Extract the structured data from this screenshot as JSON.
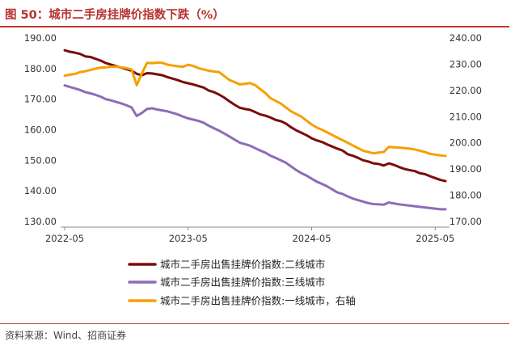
{
  "header": {
    "title": "图 50：城市二手房挂牌价指数下跌（%）"
  },
  "footer": {
    "source": "资料来源：Wind、招商证券"
  },
  "colors": {
    "series_2nd_tier": "#7B0C0C",
    "series_3rd_tier": "#8E6BB8",
    "series_1st_tier": "#F5A000",
    "axis": "#888888",
    "rule": "#C0392B"
  },
  "chart_data": {
    "type": "line",
    "title": "城市二手房挂牌价指数下跌（%）",
    "x_tick_labels": [
      "2022-05",
      "2023-05",
      "2024-05",
      "2025-05"
    ],
    "x_ticks": [
      0,
      12,
      24,
      36
    ],
    "xlim": [
      0,
      37
    ],
    "left_axis": {
      "ylim": [
        130,
        190
      ],
      "ticks": [
        "130.00",
        "140.00",
        "150.00",
        "160.00",
        "170.00",
        "180.00",
        "190.00"
      ]
    },
    "right_axis": {
      "ylim": [
        170,
        240
      ],
      "ticks": [
        "170.00",
        "180.00",
        "190.00",
        "200.00",
        "210.00",
        "220.00",
        "230.00",
        "240.00"
      ]
    },
    "series": [
      {
        "name": "城市二手房出售挂牌价指数:二线城市",
        "axis": "left",
        "x": [
          0,
          0.5,
          1,
          1.5,
          2,
          2.5,
          3,
          3.5,
          4,
          4.5,
          5,
          5.5,
          6,
          6.5,
          7,
          7.5,
          8,
          8.5,
          9,
          9.5,
          10,
          10.5,
          11,
          11.5,
          12,
          12.5,
          13,
          13.5,
          14,
          14.5,
          15,
          15.5,
          16,
          16.5,
          17,
          17.5,
          18,
          18.5,
          19,
          19.5,
          20,
          20.5,
          21,
          21.5,
          22,
          22.5,
          23,
          23.5,
          24,
          24.5,
          25,
          25.5,
          26,
          26.5,
          27,
          27.5,
          28,
          28.5,
          29,
          29.5,
          30,
          30.5,
          31,
          31.5,
          32,
          32.5,
          33,
          33.5,
          34,
          34.5,
          35,
          35.5,
          36,
          36.5,
          37
        ],
        "values": [
          186.0,
          185.5,
          185.2,
          184.8,
          184.0,
          183.8,
          183.2,
          182.6,
          181.8,
          181.3,
          180.8,
          180.3,
          179.8,
          179.3,
          178.3,
          177.8,
          178.5,
          178.4,
          178.1,
          177.8,
          177.2,
          176.7,
          176.2,
          175.6,
          175.2,
          174.8,
          174.3,
          173.8,
          172.8,
          172.3,
          171.5,
          170.5,
          169.3,
          168.2,
          167.2,
          166.8,
          166.5,
          165.8,
          165.0,
          164.6,
          164.0,
          163.2,
          162.8,
          162.0,
          160.8,
          159.8,
          159.0,
          158.2,
          157.2,
          156.5,
          156.0,
          155.2,
          154.5,
          153.8,
          153.2,
          152.0,
          151.5,
          150.8,
          150.0,
          149.6,
          149.0,
          148.8,
          148.3,
          149.0,
          148.5,
          147.8,
          147.2,
          146.8,
          146.5,
          145.8,
          145.5,
          144.8,
          144.2,
          143.6,
          143.2
        ]
      },
      {
        "name": "城市二手房出售挂牌价指数:三线城市",
        "axis": "left",
        "x": [
          0,
          0.5,
          1,
          1.5,
          2,
          2.5,
          3,
          3.5,
          4,
          4.5,
          5,
          5.5,
          6,
          6.5,
          7,
          7.5,
          8,
          8.5,
          9,
          9.5,
          10,
          10.5,
          11,
          11.5,
          12,
          12.5,
          13,
          13.5,
          14,
          14.5,
          15,
          15.5,
          16,
          16.5,
          17,
          17.5,
          18,
          18.5,
          19,
          19.5,
          20,
          20.5,
          21,
          21.5,
          22,
          22.5,
          23,
          23.5,
          24,
          24.5,
          25,
          25.5,
          26,
          26.5,
          27,
          27.5,
          28,
          28.5,
          29,
          29.5,
          30,
          30.5,
          31,
          31.5,
          32,
          32.5,
          33,
          33.5,
          34,
          34.5,
          35,
          35.5,
          36,
          36.5,
          37
        ],
        "values": [
          174.5,
          174.0,
          173.5,
          173.0,
          172.3,
          171.9,
          171.4,
          170.8,
          170.0,
          169.6,
          169.1,
          168.6,
          168.0,
          167.3,
          164.5,
          165.5,
          166.8,
          167.0,
          166.6,
          166.3,
          166.0,
          165.5,
          165.0,
          164.3,
          163.7,
          163.3,
          162.9,
          162.3,
          161.3,
          160.5,
          159.7,
          158.8,
          157.8,
          156.8,
          155.8,
          155.3,
          154.8,
          154.0,
          153.2,
          152.5,
          151.5,
          150.8,
          150.0,
          149.2,
          148.0,
          146.8,
          145.8,
          145.0,
          144.0,
          143.0,
          142.3,
          141.5,
          140.5,
          139.5,
          139.0,
          138.2,
          137.5,
          137.0,
          136.5,
          136.0,
          135.7,
          135.6,
          135.5,
          136.2,
          135.9,
          135.6,
          135.4,
          135.2,
          135.0,
          134.8,
          134.6,
          134.4,
          134.2,
          134.0,
          134.0
        ]
      },
      {
        "name": "城市二手房出售挂牌价指数:一线城市，右轴",
        "axis": "right",
        "x": [
          0,
          0.5,
          1,
          1.5,
          2,
          2.5,
          3,
          3.5,
          4,
          4.5,
          5,
          5.5,
          6,
          6.5,
          7,
          7.5,
          8,
          8.5,
          9,
          9.5,
          10,
          10.5,
          11,
          11.5,
          12,
          12.5,
          13,
          13.5,
          14,
          14.5,
          15,
          15.5,
          16,
          16.5,
          17,
          17.5,
          18,
          18.5,
          19,
          19.5,
          20,
          20.5,
          21,
          21.5,
          22,
          22.5,
          23,
          23.5,
          24,
          24.5,
          25,
          25.5,
          26,
          26.5,
          27,
          27.5,
          28,
          28.5,
          29,
          29.5,
          30,
          30.5,
          31,
          31.5,
          32,
          32.5,
          33,
          33.5,
          34,
          34.5,
          35,
          35.5,
          36,
          36.5,
          37
        ],
        "values": [
          225.6,
          226.0,
          226.3,
          227.0,
          227.3,
          227.8,
          228.3,
          228.7,
          228.8,
          229.0,
          229.1,
          228.8,
          228.5,
          228.0,
          222.0,
          226.5,
          230.5,
          230.4,
          230.6,
          230.5,
          229.8,
          229.5,
          229.2,
          229.0,
          229.8,
          229.3,
          228.5,
          228.0,
          227.5,
          227.2,
          227.0,
          225.5,
          224.0,
          223.2,
          222.3,
          222.5,
          222.8,
          222.0,
          220.5,
          219.0,
          217.0,
          216.0,
          215.0,
          213.5,
          212.0,
          211.0,
          210.0,
          208.5,
          207.0,
          205.8,
          205.0,
          204.0,
          203.0,
          202.0,
          201.0,
          200.0,
          199.0,
          198.0,
          197.0,
          196.5,
          196.0,
          196.3,
          196.5,
          198.5,
          198.3,
          198.2,
          198.0,
          197.8,
          197.5,
          197.0,
          196.5,
          195.8,
          195.5,
          195.2,
          195.0
        ]
      }
    ],
    "legend": [
      "城市二手房出售挂牌价指数:二线城市",
      "城市二手房出售挂牌价指数:三线城市",
      "城市二手房出售挂牌价指数:一线城市，右轴"
    ],
    "legend_position": "bottom-center",
    "grid": false
  }
}
